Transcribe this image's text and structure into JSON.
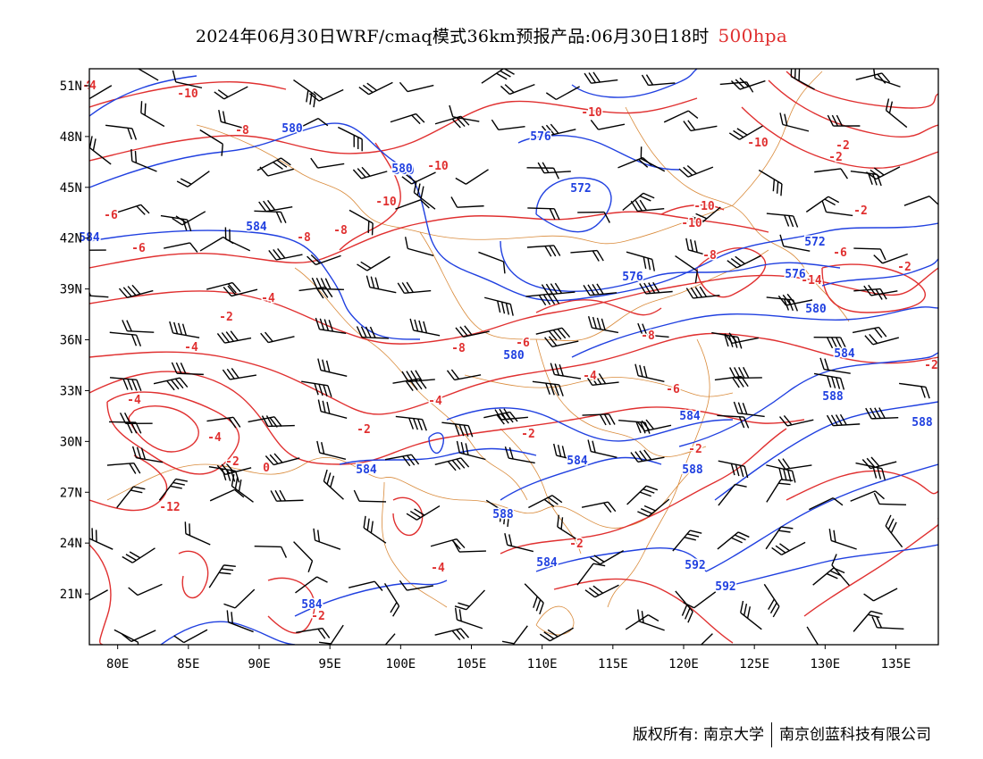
{
  "title": {
    "text": "2024年06月30日WRF/cmaq模式36km预报产品:06月30日18时",
    "level": "500hpa",
    "level_color": "#e03030"
  },
  "chart_data": {
    "type": "contour-map",
    "layers": [
      {
        "name": "geopotential height",
        "color": "#2040e0",
        "labels": [
          "584",
          "580",
          "580",
          "576",
          "572",
          "584",
          "580",
          "576",
          "572",
          "576",
          "580",
          "584",
          "580",
          "584",
          "588",
          "584",
          "584",
          "588",
          "584",
          "588",
          "588",
          "592",
          "592",
          "584"
        ]
      },
      {
        "name": "temperature",
        "color": "#e03030",
        "labels": [
          "-10",
          "-8",
          "-10",
          "-10",
          "-10",
          "-10",
          "-8",
          "-6",
          "-8",
          "-10",
          "-10",
          "-8",
          "-6",
          "-6",
          "-4",
          "-2",
          "-4",
          "-2",
          "-8",
          "-6",
          "-4",
          "-6",
          "-4",
          "-2",
          "-4",
          "-2",
          "0",
          "-2",
          "-2",
          "-4",
          "-2",
          "-2",
          "-2",
          "-2",
          "-2",
          "-14",
          "-12",
          "-8",
          "-2",
          "-4",
          "0",
          "-6",
          "-4"
        ]
      },
      {
        "name": "wind barbs",
        "color": "#000000"
      }
    ],
    "x_axis": {
      "ticks": [
        "80E",
        "85E",
        "90E",
        "95E",
        "100E",
        "105E",
        "110E",
        "115E",
        "120E",
        "125E",
        "130E",
        "135E"
      ],
      "range": [
        78,
        138
      ]
    },
    "y_axis": {
      "ticks": [
        "51N",
        "48N",
        "45N",
        "42N",
        "39N",
        "36N",
        "33N",
        "30N",
        "27N",
        "24N",
        "21N"
      ],
      "range": [
        18,
        52
      ]
    }
  },
  "footer": {
    "left": "版权所有: 南京大学",
    "right": "南京创蓝科技有限公司"
  }
}
